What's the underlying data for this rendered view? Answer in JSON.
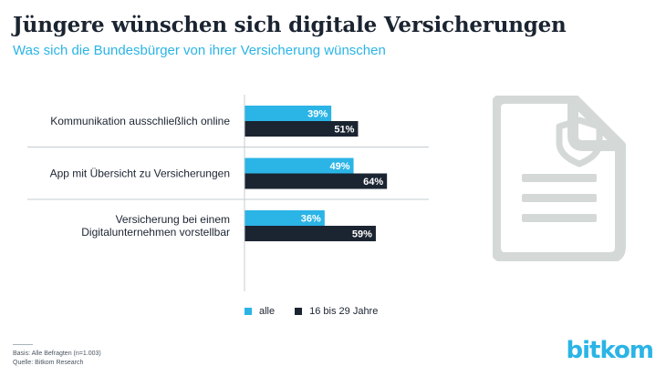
{
  "header": {
    "title": "Jüngere wünschen sich digitale Versicherungen",
    "subtitle": "Was sich die Bundesbürger von ihrer Versicherung wünschen"
  },
  "chart_data": {
    "type": "bar",
    "orientation": "horizontal",
    "categories": [
      [
        "Kommunikation ausschließlich online"
      ],
      [
        "App mit Übersicht zu Versicherungen"
      ],
      [
        "Versicherung bei einem",
        "Digitalunternehmen vorstellbar"
      ]
    ],
    "series": [
      {
        "name": "alle",
        "values": [
          39,
          49,
          36
        ],
        "labels": [
          "39%",
          "49%",
          "36%"
        ],
        "color": "#2bb4e6"
      },
      {
        "name": "16 bis 29 Jahre",
        "values": [
          51,
          64,
          59
        ],
        "labels": [
          "51%",
          "64%",
          "59%"
        ],
        "color": "#1b2431"
      }
    ],
    "legend_position": "bottom",
    "grid": false
  },
  "footer": {
    "basis": "Basis: Alle Befragten (n=1.003)",
    "source": "Quelle: Bitkom Research",
    "logo": "bitkom"
  },
  "icons": {
    "illustration": "insurance-document-icon"
  }
}
